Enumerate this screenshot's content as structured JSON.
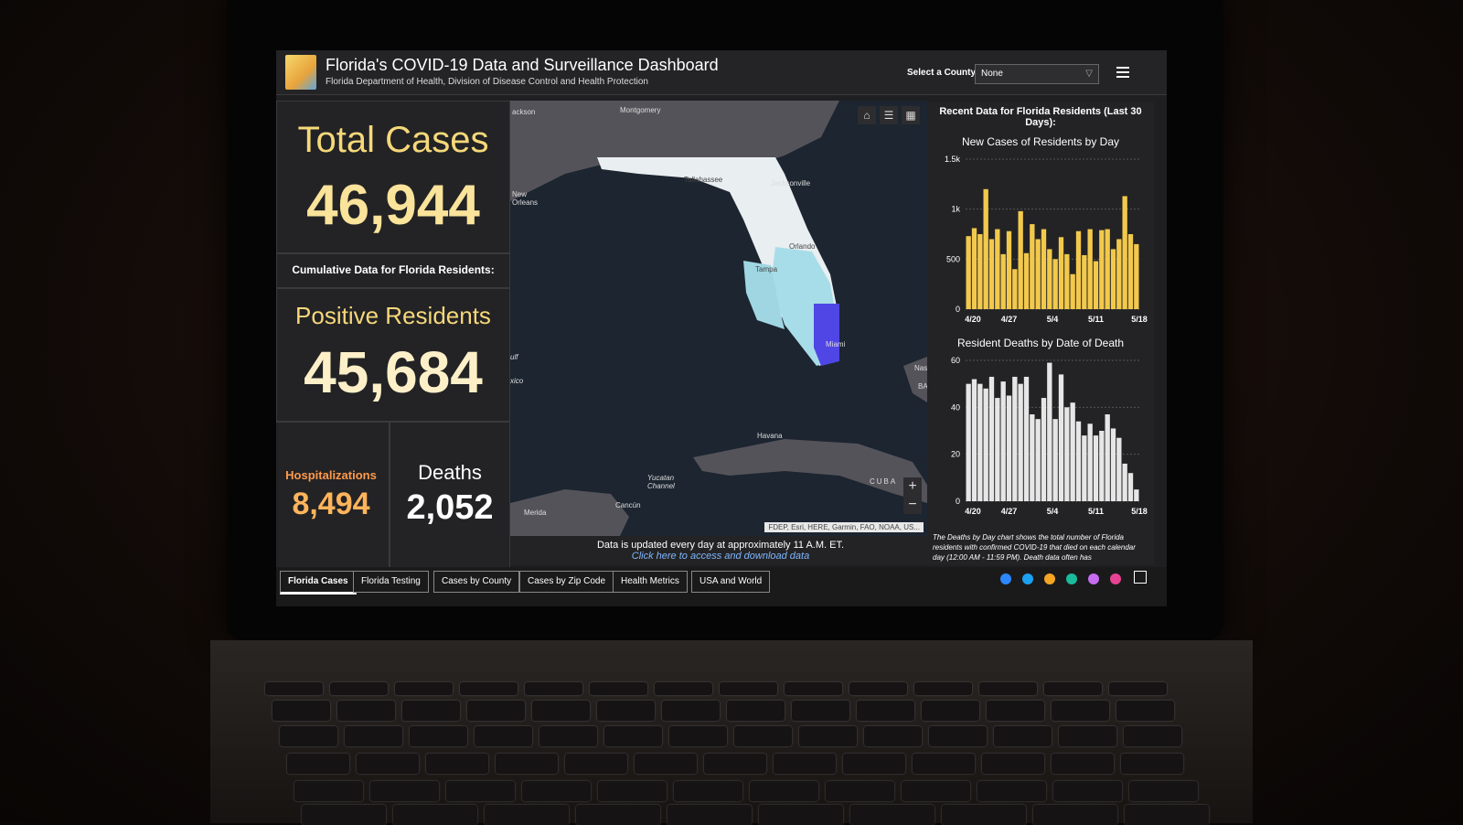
{
  "header": {
    "title": "Florida's COVID-19 Data and Surveillance Dashboard",
    "subtitle": "Florida Department of Health, Division of Disease Control and Health Protection",
    "county_label": "Select a County",
    "county_value": "None"
  },
  "summary": {
    "total_cases_label": "Total Cases",
    "total_cases_value": "46,944",
    "cumulative_label": "Cumulative Data for Florida Residents:",
    "positive_label": "Positive Residents",
    "positive_value": "45,684",
    "hosp_label": "Hospitalizations",
    "hosp_value": "8,494",
    "deaths_label": "Deaths",
    "deaths_value": "2,052"
  },
  "map": {
    "cities": [
      "ackson",
      "Montgomery",
      "New Orleans",
      "Tallahassee",
      "Jacksonville",
      "Orlando",
      "Tampa",
      "Miami",
      "Havana",
      "Yucatan Channel",
      "Cancún",
      "Merida",
      "CUBA",
      "ulf",
      "xico",
      "Nas",
      "BA"
    ],
    "attribution": "FDEP, Esri, HERE, Garmin, FAO, NOAA, US...",
    "update_text": "Data is updated every day at approximately 11 A.M. ET.",
    "update_link": "Click here to access and download data"
  },
  "right_panel": {
    "heading": "Recent Data for Florida Residents (Last 30 Days):",
    "note": "The Deaths by Day chart shows the total number of Florida residents with confirmed COVID-19 that died on each calendar day (12:00 AM - 11:59 PM). Death data often has"
  },
  "chart_data": [
    {
      "type": "bar",
      "title": "New Cases of Residents by Day",
      "yticks": [
        "1.5k",
        "1k",
        "500",
        "0"
      ],
      "xticks": [
        "4/20",
        "4/27",
        "5/4",
        "5/11",
        "5/18"
      ],
      "ylim": [
        0,
        1500
      ],
      "values": [
        730,
        810,
        750,
        1200,
        700,
        800,
        550,
        780,
        400,
        980,
        560,
        850,
        700,
        800,
        600,
        500,
        720,
        550,
        350,
        780,
        540,
        800,
        480,
        790,
        800,
        600,
        700,
        1130,
        750,
        650
      ],
      "color": "#f2c94c"
    },
    {
      "type": "bar",
      "title": "Resident Deaths by Date of Death",
      "yticks": [
        "60",
        "40",
        "20",
        "0"
      ],
      "xticks": [
        "4/20",
        "4/27",
        "5/4",
        "5/11",
        "5/18"
      ],
      "ylim": [
        0,
        60
      ],
      "values": [
        50,
        52,
        50,
        48,
        53,
        44,
        51,
        45,
        53,
        50,
        53,
        37,
        35,
        44,
        59,
        35,
        54,
        40,
        42,
        34,
        28,
        33,
        28,
        30,
        37,
        31,
        27,
        16,
        12,
        5
      ],
      "color": "#e6e6e6"
    }
  ],
  "tabs": [
    "Florida Cases",
    "Florida Testing",
    "Cases by County",
    "Cases by Zip Code",
    "Health Metrics",
    "USA and World"
  ],
  "social_colors": [
    "#2d88ff",
    "#1da1f2",
    "#f5a623",
    "#1abc9c",
    "#c56cf0",
    "#e84393"
  ]
}
